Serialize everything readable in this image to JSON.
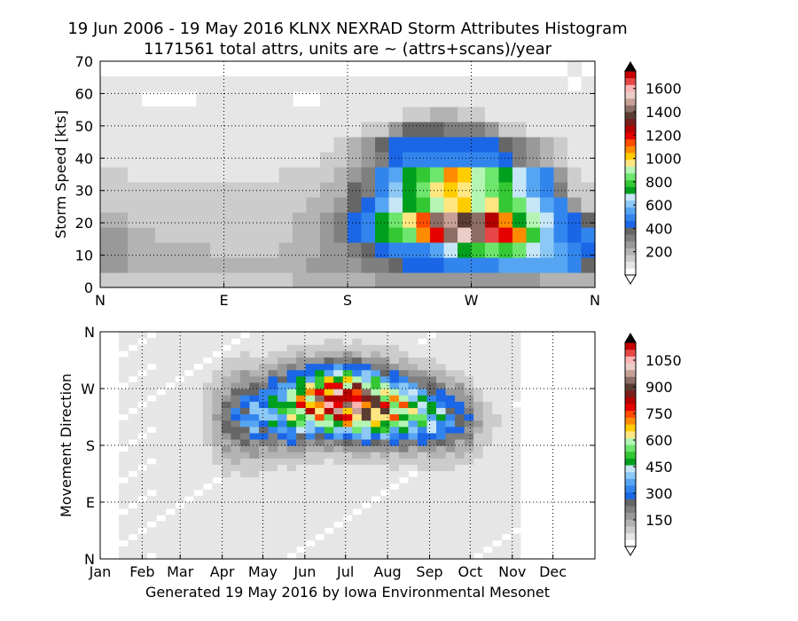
{
  "figure": {
    "title_line1": "19 Jun 2006 - 19 May 2016 KLNX NEXRAD Storm Attributes Histogram",
    "title_line2": "1171561 total attrs, units are ~ (attrs+scans)/year",
    "footer": "Generated 19 May 2016 by Iowa Environmental Mesonet"
  },
  "colormap": [
    "#ffffff",
    "#e6e6e6",
    "#cccccc",
    "#b3b3b3",
    "#999999",
    "#7f7f7f",
    "#666666",
    "#1a66e6",
    "#3385ee",
    "#55a5f2",
    "#8cc8f5",
    "#c6e6f8",
    "#00a01e",
    "#34c834",
    "#6ee66e",
    "#b4f5b4",
    "#ffe680",
    "#ffcc00",
    "#ff8c00",
    "#ff4d00",
    "#e60000",
    "#b40000",
    "#7a1e1e",
    "#5a3c32",
    "#8c6e64",
    "#c8a096",
    "#ebcdc8",
    "#ffb4b4",
    "#e64646",
    "#c80000"
  ],
  "chart_data": [
    {
      "type": "heatmap",
      "xlabel": "",
      "ylabel": "Storm Speed [kts]",
      "x_tick_labels": [
        "N",
        "E",
        "S",
        "W",
        "N"
      ],
      "x_range_deg": [
        0,
        360
      ],
      "x_bin_deg": 10,
      "y_ticks": [
        0,
        10,
        20,
        30,
        40,
        50,
        60,
        70
      ],
      "ylim": [
        0,
        70
      ],
      "y_bin_kts": 5,
      "colorbar_ticks": [
        200,
        400,
        600,
        800,
        1000,
        1200,
        1400,
        1600
      ],
      "colorbar_max": 1750,
      "grid": true,
      "z_rows_from_y0": [
        [
          2,
          2,
          2,
          2,
          2,
          2,
          2,
          2,
          2,
          2,
          2,
          2,
          2,
          2,
          3,
          3,
          3,
          3,
          3,
          3,
          4,
          4,
          4,
          4,
          4,
          4,
          4,
          4,
          4,
          4,
          4,
          4,
          3,
          3,
          3,
          3
        ],
        [
          4,
          4,
          3,
          3,
          3,
          3,
          3,
          3,
          3,
          3,
          3,
          3,
          3,
          3,
          3,
          4,
          4,
          4,
          4,
          5,
          5,
          6,
          7,
          7,
          7,
          8,
          8,
          8,
          8,
          9,
          9,
          9,
          9,
          9,
          8,
          6
        ],
        [
          4,
          4,
          3,
          3,
          3,
          3,
          3,
          3,
          2,
          2,
          2,
          2,
          2,
          3,
          3,
          3,
          4,
          4,
          5,
          6,
          7,
          8,
          8,
          8,
          9,
          11,
          12,
          13,
          14,
          13,
          14,
          11,
          10,
          9,
          8,
          7
        ],
        [
          4,
          4,
          3,
          3,
          2,
          2,
          2,
          2,
          2,
          2,
          2,
          2,
          2,
          2,
          3,
          3,
          4,
          5,
          7,
          8,
          12,
          13,
          14,
          18,
          20,
          24,
          26,
          24,
          28,
          20,
          18,
          13,
          10,
          8,
          7,
          8
        ],
        [
          3,
          3,
          2,
          2,
          2,
          2,
          2,
          2,
          2,
          2,
          2,
          2,
          2,
          2,
          3,
          3,
          4,
          5,
          7,
          8,
          12,
          14,
          16,
          19,
          24,
          25,
          23,
          24,
          21,
          18,
          12,
          15,
          11,
          8,
          7,
          6
        ],
        [
          2,
          2,
          2,
          2,
          2,
          2,
          2,
          2,
          2,
          2,
          2,
          2,
          2,
          2,
          2,
          3,
          3,
          4,
          6,
          7,
          9,
          11,
          12,
          13,
          15,
          16,
          17,
          15,
          16,
          13,
          14,
          11,
          9,
          8,
          4,
          2
        ],
        [
          2,
          2,
          2,
          2,
          2,
          2,
          2,
          2,
          2,
          2,
          2,
          2,
          2,
          2,
          2,
          2,
          3,
          3,
          6,
          5,
          8,
          10,
          12,
          14,
          16,
          17,
          16,
          15,
          14,
          13,
          11,
          9,
          8,
          5,
          2,
          2
        ],
        [
          2,
          2,
          1,
          1,
          1,
          1,
          1,
          1,
          1,
          1,
          1,
          1,
          1,
          2,
          2,
          2,
          2,
          3,
          4,
          5,
          8,
          9,
          12,
          13,
          14,
          18,
          17,
          15,
          14,
          12,
          11,
          9,
          8,
          4,
          2,
          1
        ],
        [
          1,
          1,
          1,
          1,
          1,
          1,
          1,
          1,
          1,
          1,
          1,
          1,
          1,
          1,
          1,
          1,
          2,
          2,
          3,
          4,
          5,
          7,
          8,
          8,
          8,
          8,
          8,
          8,
          8,
          7,
          5,
          4,
          3,
          2,
          1,
          1
        ],
        [
          1,
          1,
          1,
          1,
          1,
          1,
          1,
          1,
          1,
          1,
          1,
          1,
          1,
          1,
          1,
          1,
          1,
          2,
          3,
          4,
          6,
          7,
          7,
          7,
          7,
          7,
          7,
          7,
          7,
          6,
          5,
          4,
          3,
          2,
          1,
          1
        ],
        [
          1,
          1,
          1,
          1,
          1,
          1,
          1,
          1,
          1,
          1,
          1,
          1,
          1,
          1,
          1,
          1,
          1,
          1,
          1,
          2,
          2,
          4,
          6,
          6,
          6,
          5,
          5,
          5,
          4,
          2,
          2,
          1,
          1,
          1,
          1,
          1
        ],
        [
          1,
          1,
          1,
          1,
          1,
          1,
          1,
          1,
          1,
          1,
          1,
          1,
          1,
          1,
          1,
          1,
          1,
          1,
          1,
          1,
          1,
          1,
          2,
          2,
          3,
          3,
          2,
          2,
          1,
          1,
          1,
          1,
          1,
          1,
          1,
          1
        ],
        [
          1,
          1,
          1,
          0,
          0,
          0,
          0,
          1,
          1,
          1,
          1,
          1,
          1,
          1,
          0,
          0,
          1,
          1,
          1,
          1,
          1,
          1,
          1,
          1,
          1,
          1,
          1,
          1,
          1,
          1,
          1,
          1,
          1,
          1,
          1,
          1
        ],
        [
          1,
          1,
          1,
          1,
          1,
          1,
          1,
          1,
          1,
          1,
          1,
          1,
          1,
          1,
          1,
          1,
          1,
          1,
          1,
          1,
          1,
          1,
          1,
          1,
          1,
          1,
          1,
          1,
          1,
          1,
          1,
          1,
          1,
          1,
          0,
          1
        ],
        [
          0,
          0,
          0,
          0,
          0,
          0,
          0,
          0,
          0,
          0,
          0,
          0,
          0,
          0,
          0,
          0,
          0,
          0,
          0,
          0,
          0,
          0,
          0,
          0,
          0,
          0,
          0,
          0,
          0,
          0,
          0,
          0,
          0,
          0,
          1,
          0
        ]
      ]
    },
    {
      "type": "heatmap",
      "xlabel": "",
      "ylabel": "Movement Direction",
      "x_tick_labels": [
        "Jan",
        "Feb",
        "Mar",
        "Apr",
        "May",
        "Jun",
        "Jul",
        "Aug",
        "Sep",
        "Oct",
        "Nov",
        "Dec"
      ],
      "x_bins": 53,
      "y_tick_labels": [
        "N",
        "E",
        "S",
        "W",
        "N"
      ],
      "y_range_deg": [
        0,
        360
      ],
      "y_bin_deg": 10,
      "colorbar_ticks": [
        150,
        300,
        450,
        600,
        750,
        900,
        1050
      ],
      "colorbar_max": 1150,
      "grid": true,
      "profile": {
        "week": [
          0,
          10,
          12,
          13,
          15,
          16,
          17,
          18,
          19,
          20,
          21,
          22,
          23,
          24,
          25,
          26,
          27,
          28,
          29,
          30,
          31,
          32,
          33,
          34,
          35,
          36,
          37,
          38,
          39,
          40,
          41,
          42,
          44,
          46,
          52
        ],
        "intensity": [
          0,
          0,
          0.2,
          0.4,
          0.6,
          0.75,
          0.7,
          0.9,
          0.9,
          1.2,
          1.4,
          1.5,
          1.7,
          1.9,
          2.0,
          2.0,
          2.0,
          1.9,
          1.7,
          1.6,
          1.4,
          1.3,
          1.1,
          1.0,
          0.9,
          0.8,
          0.6,
          0.5,
          0.4,
          0.2,
          0.1,
          0.05,
          0,
          0,
          0
        ],
        "center_deg": [
          225,
          225,
          225,
          225,
          230,
          230,
          232,
          238,
          240,
          242,
          245,
          248,
          250,
          250,
          250,
          250,
          248,
          245,
          245,
          242,
          240,
          238,
          235,
          232,
          230,
          228,
          225,
          225,
          220,
          215,
          215,
          215,
          215,
          215,
          215
        ],
        "spread_deg": [
          60,
          60,
          60,
          60,
          60,
          55,
          55,
          55,
          55,
          55,
          52,
          50,
          50,
          50,
          50,
          50,
          50,
          50,
          50,
          50,
          50,
          50,
          50,
          50,
          50,
          50,
          50,
          50,
          48,
          45,
          45,
          45,
          45,
          45,
          45
        ]
      }
    }
  ]
}
